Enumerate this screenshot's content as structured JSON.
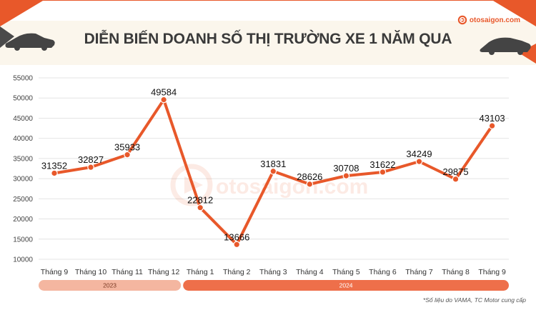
{
  "title": "DIỄN BIẾN DOANH SỐ THỊ TRƯỜNG XE 1 NĂM QUA",
  "brand": {
    "name": "otosaigon.com",
    "icon": "otosaigon-logo-icon"
  },
  "watermark": "otosaigon.com",
  "source_note": "*Số liệu do VAMA, TC Motor cung cấp",
  "colors": {
    "accent": "#e8582a",
    "band_2023": "#f4b6a0",
    "band_2024": "#ee6f4a",
    "header_bg": "#fbf6ec",
    "title": "#3a3a3a"
  },
  "chart_data": {
    "type": "line",
    "title": "DIỄN BIẾN DOANH SỐ THỊ TRƯỜNG XE 1 NĂM QUA",
    "xlabel": "",
    "ylabel": "",
    "categories": [
      "Tháng 9",
      "Tháng 10",
      "Tháng 11",
      "Tháng 12",
      "Tháng 1",
      "Tháng 2",
      "Tháng 3",
      "Tháng 4",
      "Tháng 5",
      "Tháng 6",
      "Tháng 7",
      "Tháng 8",
      "Tháng 9"
    ],
    "series": [
      {
        "values": [
          31352,
          32827,
          35933,
          49584,
          22812,
          13666,
          31831,
          28626,
          30708,
          31622,
          34249,
          29875,
          43103
        ]
      }
    ],
    "value_labels": [
      "31352",
      "32827",
      "35933",
      "49584",
      "22812",
      "13666",
      "31831",
      "28626",
      "30708",
      "31622",
      "34249",
      "29875",
      "43103"
    ],
    "yticks": [
      "10000",
      "15000",
      "20000",
      "25000",
      "30000",
      "35000",
      "40000",
      "45000",
      "50000",
      "55000"
    ],
    "ylim": [
      10000,
      55000
    ],
    "grid": true,
    "legend": "none",
    "year_groups": [
      {
        "label": "2023",
        "span": [
          0,
          3
        ]
      },
      {
        "label": "2024",
        "span": [
          4,
          12
        ]
      }
    ]
  }
}
